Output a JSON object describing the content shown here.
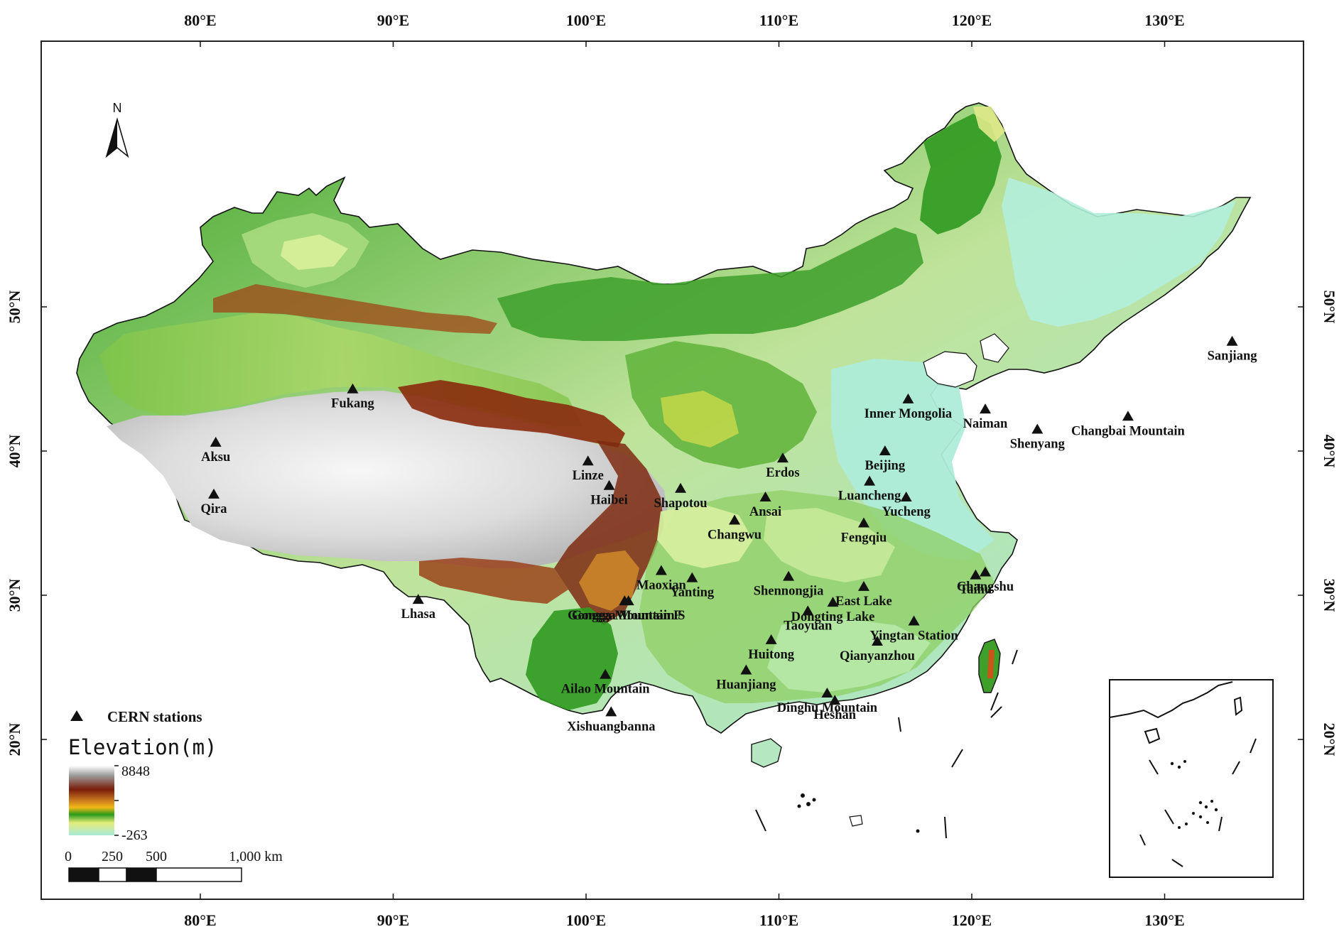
{
  "map": {
    "lon_ticks": [
      {
        "value": 80,
        "label": "80°E"
      },
      {
        "value": 90,
        "label": "90°E"
      },
      {
        "value": 100,
        "label": "100°E"
      },
      {
        "value": 110,
        "label": "110°E"
      },
      {
        "value": 120,
        "label": "120°E"
      },
      {
        "value": 130,
        "label": "130°E"
      }
    ],
    "lat_ticks": [
      {
        "value": 20,
        "label": "20°N"
      },
      {
        "value": 30,
        "label": "30°N"
      },
      {
        "value": 40,
        "label": "40°N"
      },
      {
        "value": 50,
        "label": "50°N"
      }
    ],
    "north_label": "N",
    "stations": [
      {
        "name": "Fukang",
        "lon": 87.9,
        "lat": 44.3
      },
      {
        "name": "Aksu",
        "lon": 80.8,
        "lat": 40.6
      },
      {
        "name": "Qira",
        "lon": 80.7,
        "lat": 37.0
      },
      {
        "name": "Linze",
        "lon": 100.1,
        "lat": 39.3
      },
      {
        "name": "Haibei",
        "lon": 101.2,
        "lat": 37.6
      },
      {
        "name": "Shapotou",
        "lon": 104.9,
        "lat": 37.4
      },
      {
        "name": "Erdos",
        "lon": 110.2,
        "lat": 39.5
      },
      {
        "name": "Ansai",
        "lon": 109.3,
        "lat": 36.8
      },
      {
        "name": "Changwu",
        "lon": 107.7,
        "lat": 35.2
      },
      {
        "name": "Inner Mongolia",
        "lon": 116.7,
        "lat": 43.6
      },
      {
        "name": "Naiman",
        "lon": 120.7,
        "lat": 42.9
      },
      {
        "name": "Shenyang",
        "lon": 123.4,
        "lat": 41.5
      },
      {
        "name": "Changbai Mountain",
        "lon": 128.1,
        "lat": 42.4
      },
      {
        "name": "Sanjiang",
        "lon": 133.5,
        "lat": 47.6
      },
      {
        "name": "Beijing",
        "lon": 115.5,
        "lat": 40.0
      },
      {
        "name": "Luancheng",
        "lon": 114.7,
        "lat": 37.9
      },
      {
        "name": "Yucheng",
        "lon": 116.6,
        "lat": 36.8
      },
      {
        "name": "Fengqiu",
        "lon": 114.4,
        "lat": 35.0
      },
      {
        "name": "Shennongjia",
        "lon": 110.5,
        "lat": 31.3
      },
      {
        "name": "Changshu",
        "lon": 120.7,
        "lat": 31.6
      },
      {
        "name": "Taihu",
        "lon": 120.2,
        "lat": 31.4
      },
      {
        "name": "East Lake",
        "lon": 114.4,
        "lat": 30.6
      },
      {
        "name": "Maoxian",
        "lon": 103.9,
        "lat": 31.7
      },
      {
        "name": "Yanting",
        "lon": 105.5,
        "lat": 31.2
      },
      {
        "name": "Lhasa",
        "lon": 91.3,
        "lat": 29.7
      },
      {
        "name": "Gongga Mountain F",
        "lon": 102.0,
        "lat": 29.6
      },
      {
        "name": "Gongga Mountain S",
        "lon": 102.2,
        "lat": 29.6
      },
      {
        "name": "Taoyuan",
        "lon": 111.5,
        "lat": 28.9
      },
      {
        "name": "Dongting Lake",
        "lon": 112.8,
        "lat": 29.5
      },
      {
        "name": "Yingtan Station",
        "lon": 117.0,
        "lat": 28.2
      },
      {
        "name": "Qianyanzhou",
        "lon": 115.1,
        "lat": 26.8
      },
      {
        "name": "Huitong",
        "lon": 109.6,
        "lat": 26.9
      },
      {
        "name": "Huanjiang",
        "lon": 108.3,
        "lat": 24.8
      },
      {
        "name": "Ailao Mountain",
        "lon": 101.0,
        "lat": 24.5
      },
      {
        "name": "Dinghu Mountain",
        "lon": 112.5,
        "lat": 23.2
      },
      {
        "name": "Heshan",
        "lon": 112.9,
        "lat": 22.7
      },
      {
        "name": "Xishuangbanna",
        "lon": 101.3,
        "lat": 21.9
      }
    ]
  },
  "legend": {
    "stations_label": "CERN stations",
    "elevation_title": "Elevation(m)",
    "elevation_max": "8848",
    "elevation_min": "-263",
    "colors": [
      "#ffffff",
      "#9c9c9c",
      "#7a1c0a",
      "#c97a1f",
      "#f2b817",
      "#2a9a18",
      "#e3ec7a",
      "#a8ead8"
    ]
  },
  "scalebar": {
    "labels": [
      "0",
      "250",
      "500",
      "1,000 km"
    ]
  }
}
